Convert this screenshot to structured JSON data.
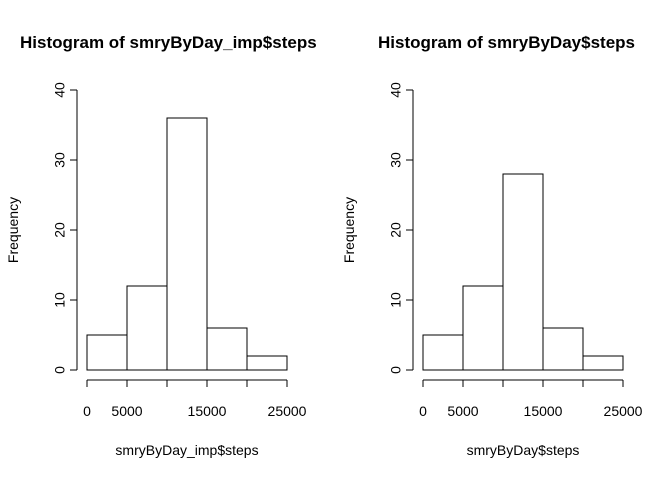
{
  "chart_data": [
    {
      "type": "bar",
      "title": "Histogram of smryByDay_imp$steps",
      "xlabel": "smryByDay_imp$steps",
      "ylabel": "Frequency",
      "bins": [
        [
          0,
          5000
        ],
        [
          5000,
          10000
        ],
        [
          10000,
          15000
        ],
        [
          15000,
          20000
        ],
        [
          20000,
          25000
        ]
      ],
      "values": [
        5,
        12,
        36,
        6,
        2
      ],
      "xlim": [
        0,
        25000
      ],
      "ylim": [
        0,
        40
      ],
      "xticks": [
        "0",
        "5000",
        "15000",
        "25000"
      ],
      "xtick_values": [
        0,
        5000,
        15000,
        25000
      ],
      "yticks": [
        "0",
        "10",
        "20",
        "30",
        "40"
      ],
      "ytick_values": [
        0,
        10,
        20,
        30,
        40
      ],
      "grid": false,
      "bar_fill": "#ffffff",
      "bar_stroke": "#000000"
    },
    {
      "type": "bar",
      "title": "Histogram of smryByDay$steps",
      "xlabel": "smryByDay$steps",
      "ylabel": "Frequency",
      "bins": [
        [
          0,
          5000
        ],
        [
          5000,
          10000
        ],
        [
          10000,
          15000
        ],
        [
          15000,
          20000
        ],
        [
          20000,
          25000
        ]
      ],
      "values": [
        5,
        12,
        28,
        6,
        2
      ],
      "xlim": [
        0,
        25000
      ],
      "ylim": [
        0,
        40
      ],
      "xticks": [
        "0",
        "5000",
        "15000",
        "25000"
      ],
      "xtick_values": [
        0,
        5000,
        15000,
        25000
      ],
      "yticks": [
        "0",
        "10",
        "20",
        "30",
        "40"
      ],
      "ytick_values": [
        0,
        10,
        20,
        30,
        40
      ],
      "grid": false,
      "bar_fill": "#ffffff",
      "bar_stroke": "#000000"
    }
  ]
}
